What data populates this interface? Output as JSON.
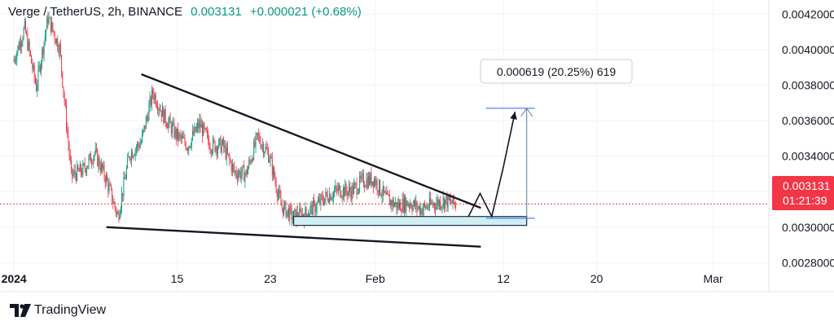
{
  "header": {
    "symbol": "Verge / TetherUS, 2h, BINANCE",
    "last_price": "0.003131",
    "change": "+0.000021 (+0.68%)"
  },
  "branding": {
    "name": "TradingView"
  },
  "price_badge": {
    "price": "0.003131",
    "countdown": "01:21:39",
    "color": "#f23645"
  },
  "measure_label": "0.000619 (20.25%) 619",
  "chart_data": {
    "type": "candlestick",
    "x_tick_labels": [
      "2024",
      "15",
      "23",
      "Feb",
      "12",
      "20",
      "Mar"
    ],
    "y_tick_labels": [
      "0.0042000",
      "0.0040000",
      "0.0038000",
      "0.0036000",
      "0.0034000",
      "0.0032000",
      "0.0030000",
      "0.0028000"
    ],
    "ylim": [
      0.00265,
      0.00428
    ],
    "last_price": 0.003131,
    "close_path": [
      [
        "Jan 1",
        0.00393
      ],
      [
        "Jan 2",
        0.00412
      ],
      [
        "Jan 3",
        0.00379
      ],
      [
        "Jan 4",
        0.00418
      ],
      [
        "Jan 5",
        0.00401
      ],
      [
        "Jan 6",
        0.00329
      ],
      [
        "Jan 7",
        0.00332
      ],
      [
        "Jan 8",
        0.00342
      ],
      [
        "Jan 9",
        0.00327
      ],
      [
        "Jan 10",
        0.00306
      ],
      [
        "Jan 11",
        0.00341
      ],
      [
        "Jan 12",
        0.00348
      ],
      [
        "Jan 13",
        0.00376
      ],
      [
        "Jan 14",
        0.00362
      ],
      [
        "Jan 15",
        0.00352
      ],
      [
        "Jan 16",
        0.00346
      ],
      [
        "Jan 17",
        0.00358
      ],
      [
        "Jan 18",
        0.00346
      ],
      [
        "Jan 19",
        0.00346
      ],
      [
        "Jan 20",
        0.00331
      ],
      [
        "Jan 21",
        0.0033
      ],
      [
        "Jan 22",
        0.00351
      ],
      [
        "Jan 23",
        0.0034
      ],
      [
        "Jan 24",
        0.00312
      ],
      [
        "Jan 25",
        0.00306
      ],
      [
        "Jan 26",
        0.00307
      ],
      [
        "Jan 27",
        0.00312
      ],
      [
        "Jan 28",
        0.00318
      ],
      [
        "Jan 29",
        0.00321
      ],
      [
        "Jan 30",
        0.0032
      ],
      [
        "Jan 31",
        0.00326
      ],
      [
        "Feb 1",
        0.00327
      ],
      [
        "Feb 2",
        0.00316
      ],
      [
        "Feb 3",
        0.00312
      ],
      [
        "Feb 4",
        0.00314
      ],
      [
        "Feb 5",
        0.0031
      ],
      [
        "Feb 6",
        0.00313
      ],
      [
        "Feb 7",
        0.00315
      ],
      [
        "Feb 8",
        0.00313
      ]
    ],
    "projection_path": [
      [
        "Feb 9",
        0.00306
      ],
      [
        "Feb 10",
        0.00319
      ],
      [
        "Feb 11",
        0.00306
      ],
      [
        "Feb 12",
        0.00334
      ],
      [
        "Feb 13",
        0.00365
      ]
    ],
    "measure": {
      "from_price": 0.00305,
      "to_price": 0.00367,
      "date": "Feb 14"
    },
    "support_zone": {
      "from_date": "Jan 25",
      "to_date": "Feb 14",
      "top": 0.00306,
      "bottom": 0.00301
    },
    "trendlines": [
      {
        "from": [
          "Jan 12",
          0.00386
        ],
        "to": [
          "Feb 10",
          0.00311
        ]
      },
      {
        "from": [
          "Jan 9",
          0.003
        ],
        "to": [
          "Feb 10",
          0.00289
        ]
      }
    ]
  }
}
